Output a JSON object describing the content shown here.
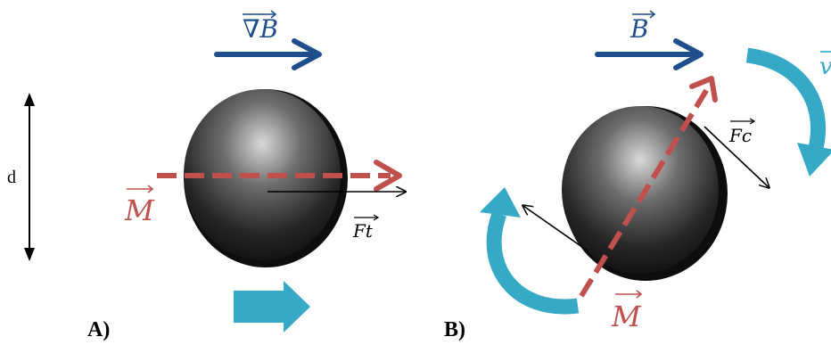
{
  "panel_a": {
    "caption": "A)",
    "gradient_label": "∇B",
    "moment_label": "M",
    "force_label": "Ft",
    "distance_label": "d"
  },
  "panel_b": {
    "caption": "B)",
    "field_label": "B",
    "moment_label": "M",
    "force_label": "Fc",
    "rotation_label_partial": "v"
  },
  "colors": {
    "navy_arrow": "#1f4e8c",
    "red_moment": "#c0504d",
    "cyan_arrow": "#35a9c6",
    "black": "#000000",
    "sphere_dark": "#111111",
    "sphere_light": "#d9d9d9"
  }
}
